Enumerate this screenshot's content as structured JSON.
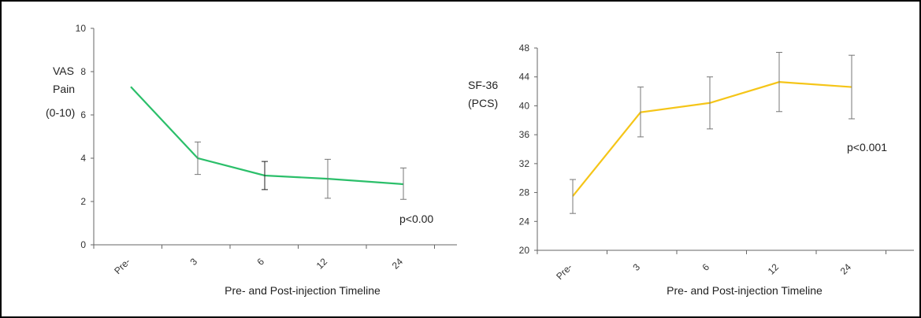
{
  "colors": {
    "vas": "#2bbf6a",
    "sf36": "#f5c518",
    "axis": "#666666"
  },
  "chart_data": [
    {
      "type": "line",
      "categories": [
        "Pre-",
        "3",
        "6",
        "12",
        "24"
      ],
      "series": [
        {
          "values": [
            7.3,
            4.0,
            3.2,
            3.05,
            2.8
          ],
          "error_low": [
            null,
            3.25,
            2.55,
            2.15,
            2.1
          ],
          "error_high": [
            null,
            4.75,
            3.85,
            3.95,
            3.55
          ]
        }
      ],
      "ylabel": [
        "VAS",
        "Pain",
        "(0-10)"
      ],
      "xlabel": "Pre- and Post-injection Timeline",
      "ylim": [
        0,
        10
      ],
      "yticks": [
        0,
        2,
        4,
        6,
        8,
        10
      ],
      "annotation": "p<0.00",
      "grid": false
    },
    {
      "type": "line",
      "categories": [
        "Pre-",
        "3",
        "6",
        "12",
        "24"
      ],
      "series": [
        {
          "values": [
            27.5,
            39.1,
            40.4,
            43.3,
            42.6
          ],
          "error_low": [
            25.1,
            35.7,
            36.8,
            39.2,
            38.2
          ],
          "error_high": [
            29.8,
            42.6,
            44.0,
            47.4,
            47.0
          ]
        }
      ],
      "ylabel": [
        "SF-36",
        "(PCS)"
      ],
      "xlabel": "Pre- and Post-injection Timeline",
      "ylim": [
        20,
        48
      ],
      "yticks": [
        20,
        24,
        28,
        32,
        36,
        40,
        44,
        48
      ],
      "annotation": "p<0.001",
      "grid": false
    }
  ]
}
